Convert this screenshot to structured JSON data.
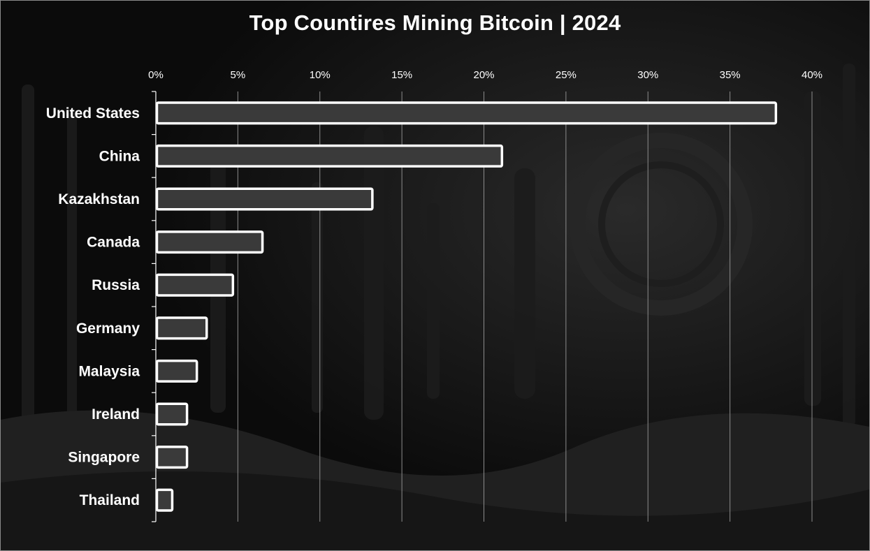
{
  "chart_data": {
    "type": "bar",
    "orientation": "horizontal",
    "title": "Top Countires Mining Bitcoin | 2024",
    "categories": [
      "United States",
      "China",
      "Kazakhstan",
      "Canada",
      "Russia",
      "Germany",
      "Malaysia",
      "Ireland",
      "Singapore",
      "Thailand"
    ],
    "values": [
      37.8,
      21.1,
      13.2,
      6.5,
      4.7,
      3.1,
      2.5,
      1.9,
      1.9,
      1.0
    ],
    "value_unit": "%",
    "xlim": [
      0,
      40
    ],
    "x_ticks": [
      "0%",
      "5%",
      "10%",
      "15%",
      "20%",
      "25%",
      "30%",
      "35%",
      "40%"
    ],
    "x_axis_position": "top",
    "grid": true,
    "legend": "none",
    "colors": {
      "background": "#0d0d0d",
      "bar_fill": "#3a3a3a",
      "bar_stroke": "#ffffff",
      "gridline": "#8c8c8c",
      "text": "#ffffff"
    }
  }
}
